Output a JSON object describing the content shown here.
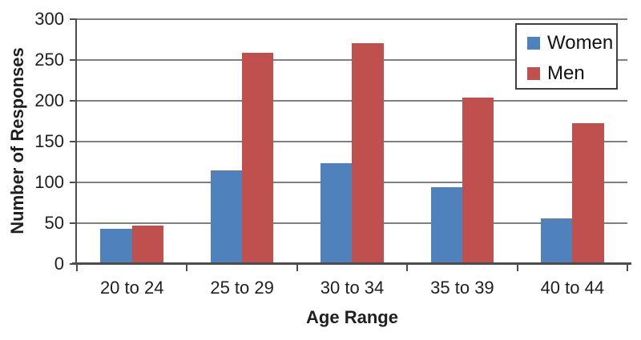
{
  "chart_data": {
    "type": "bar",
    "title": "",
    "categories": [
      "20 to 24",
      "25 to 29",
      "30 to 34",
      "35 to 39",
      "40 to 44"
    ],
    "series": [
      {
        "name": "Women",
        "color": "#4F81BD",
        "values": [
          42,
          114,
          123,
          93,
          55
        ]
      },
      {
        "name": "Men",
        "color": "#C0504D",
        "values": [
          46,
          258,
          270,
          203,
          172
        ]
      }
    ],
    "xlabel": "Age Range",
    "ylabel": "Number of Responses",
    "ylim": [
      0,
      300
    ],
    "yticks": [
      0,
      50,
      100,
      150,
      200,
      250,
      300
    ],
    "grid": true,
    "legend_position": "top-right",
    "colors": {
      "gridline": "#7f7f7f",
      "axis": "#4d4d4d",
      "text": "#1f1f1f",
      "background": "#ffffff"
    }
  }
}
